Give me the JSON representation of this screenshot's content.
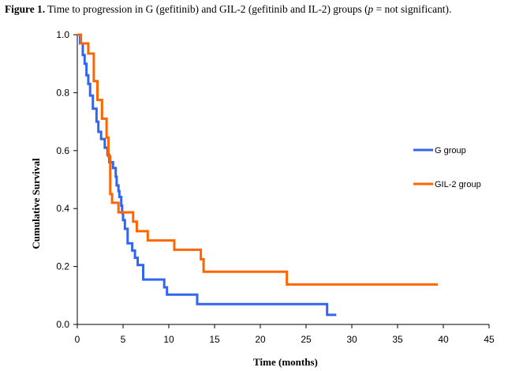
{
  "caption": {
    "label": "Figure 1.",
    "text_before": " Time to progression in G (gefitinib) and GIL-2 (gefitinib and IL-2) groups (",
    "p_symbol": "p",
    "text_after": " = not significant)."
  },
  "chart_data": {
    "type": "line",
    "step": true,
    "title": "",
    "xlabel": "Time (months)",
    "ylabel": "Cumulative Survival",
    "xlim": [
      0,
      45
    ],
    "ylim": [
      0,
      1.0
    ],
    "xticks": [
      0,
      5,
      10,
      15,
      20,
      25,
      30,
      35,
      40,
      45
    ],
    "yticks": [
      0.0,
      0.2,
      0.4,
      0.6,
      0.8,
      1.0
    ],
    "ytick_labels": [
      "0.0",
      "0.2",
      "0.4",
      "0.6",
      "0.8",
      "1.0"
    ],
    "grid": false,
    "legend_position": "right",
    "series": [
      {
        "name": "G group",
        "color": "#3366ee",
        "points": [
          [
            0,
            1.0
          ],
          [
            0.3,
            0.97
          ],
          [
            0.6,
            0.93
          ],
          [
            0.8,
            0.9
          ],
          [
            1.0,
            0.86
          ],
          [
            1.2,
            0.83
          ],
          [
            1.4,
            0.79
          ],
          [
            1.7,
            0.745
          ],
          [
            2.1,
            0.7
          ],
          [
            2.3,
            0.665
          ],
          [
            2.6,
            0.64
          ],
          [
            3.0,
            0.61
          ],
          [
            3.3,
            0.585
          ],
          [
            3.5,
            0.56
          ],
          [
            3.9,
            0.54
          ],
          [
            4.2,
            0.51
          ],
          [
            4.3,
            0.48
          ],
          [
            4.5,
            0.46
          ],
          [
            4.6,
            0.44
          ],
          [
            4.8,
            0.41
          ],
          [
            4.9,
            0.385
          ],
          [
            5.0,
            0.36
          ],
          [
            5.2,
            0.33
          ],
          [
            5.5,
            0.28
          ],
          [
            6.0,
            0.255
          ],
          [
            6.3,
            0.23
          ],
          [
            6.6,
            0.205
          ],
          [
            7.2,
            0.155
          ],
          [
            9.5,
            0.128
          ],
          [
            9.8,
            0.103
          ],
          [
            13.1,
            0.07
          ],
          [
            27.3,
            0.033
          ],
          [
            28.3,
            0.033
          ]
        ]
      },
      {
        "name": "GIL-2 group",
        "color": "#ff6600",
        "points": [
          [
            0,
            1.0
          ],
          [
            0.4,
            0.97
          ],
          [
            1.2,
            0.935
          ],
          [
            1.8,
            0.84
          ],
          [
            2.2,
            0.775
          ],
          [
            2.7,
            0.71
          ],
          [
            3.2,
            0.645
          ],
          [
            3.4,
            0.58
          ],
          [
            3.6,
            0.45
          ],
          [
            3.8,
            0.42
          ],
          [
            4.5,
            0.387
          ],
          [
            6.1,
            0.355
          ],
          [
            6.5,
            0.322
          ],
          [
            7.7,
            0.29
          ],
          [
            10.6,
            0.258
          ],
          [
            13.5,
            0.225
          ],
          [
            13.8,
            0.182
          ],
          [
            22.9,
            0.138
          ],
          [
            39.4,
            0.138
          ]
        ]
      }
    ]
  }
}
